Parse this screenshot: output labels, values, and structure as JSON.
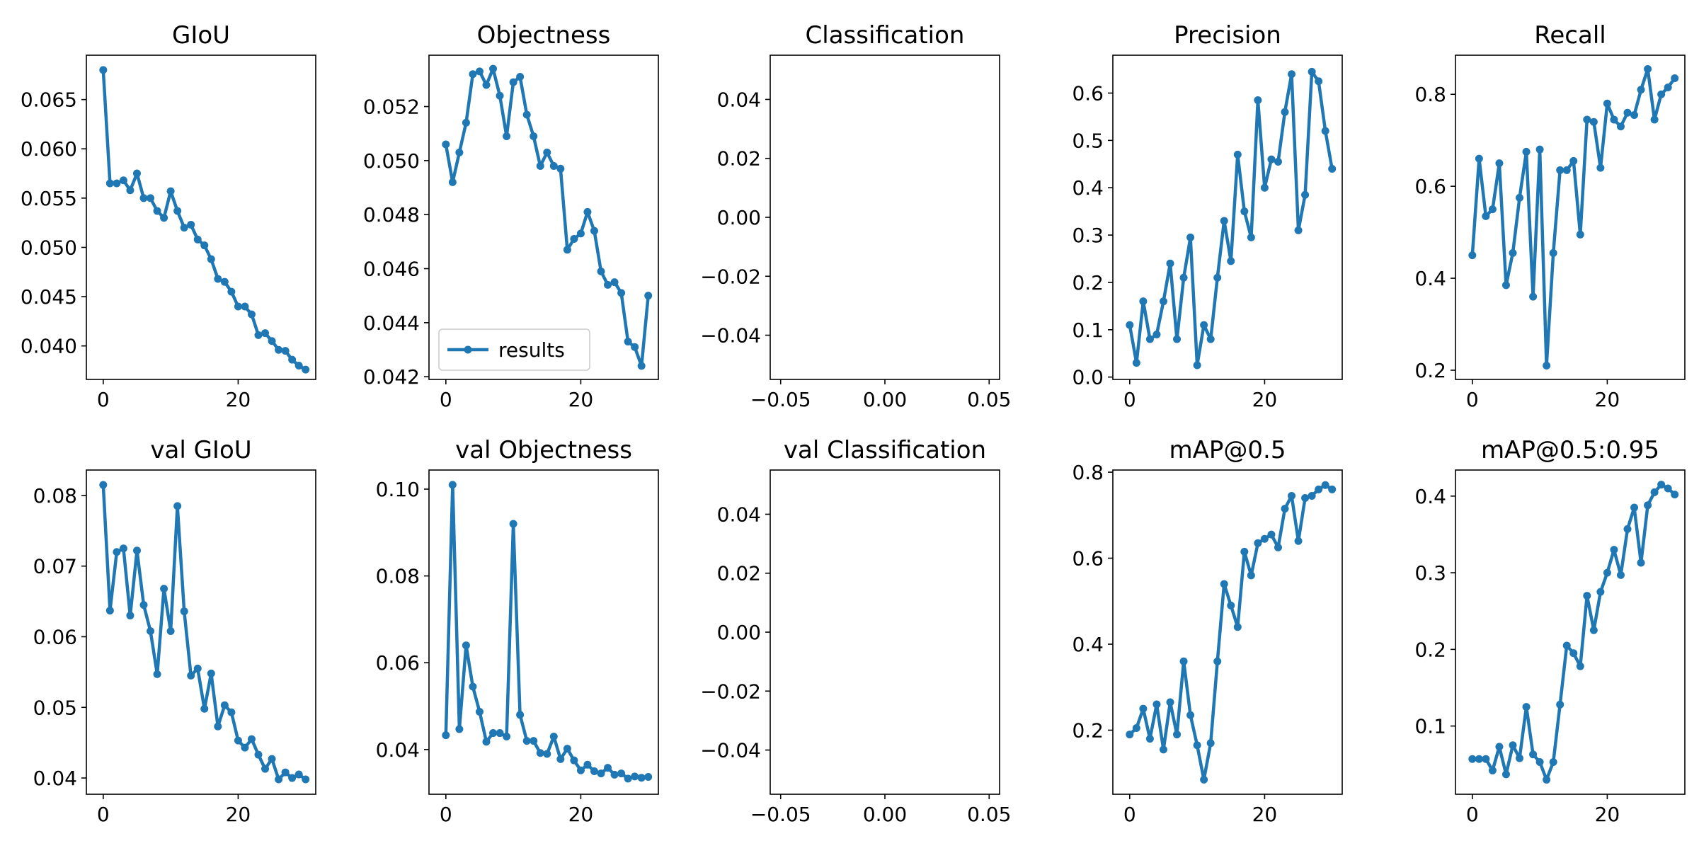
{
  "figure": {
    "line_color": "#1f77b4",
    "legend_label": "results"
  },
  "chart_data": [
    {
      "type": "line",
      "title": "GIoU",
      "x": [
        0,
        1,
        2,
        3,
        4,
        5,
        6,
        7,
        8,
        9,
        10,
        11,
        12,
        13,
        14,
        15,
        16,
        17,
        18,
        19,
        20,
        21,
        22,
        23,
        24,
        25,
        26,
        27,
        28,
        29,
        30
      ],
      "values": [
        0.068,
        0.0565,
        0.0565,
        0.0568,
        0.0558,
        0.0575,
        0.055,
        0.055,
        0.0537,
        0.053,
        0.0557,
        0.0537,
        0.052,
        0.0523,
        0.0508,
        0.0502,
        0.0488,
        0.0468,
        0.0465,
        0.0455,
        0.044,
        0.044,
        0.0432,
        0.0411,
        0.0413,
        0.0405,
        0.0396,
        0.0395,
        0.0386,
        0.038,
        0.0376
      ],
      "xlim": [
        -2.5,
        31.5
      ],
      "ylim": [
        0.0366,
        0.0695
      ],
      "xticks": [
        0,
        20
      ],
      "xtick_labels": [
        "0",
        "20"
      ],
      "yticks": [
        0.04,
        0.045,
        0.05,
        0.055,
        0.06,
        0.065
      ],
      "ytick_labels": [
        "0.040",
        "0.045",
        "0.050",
        "0.055",
        "0.060",
        "0.065"
      ],
      "legend": false
    },
    {
      "type": "line",
      "title": "Objectness",
      "x": [
        0,
        1,
        2,
        3,
        4,
        5,
        6,
        7,
        8,
        9,
        10,
        11,
        12,
        13,
        14,
        15,
        16,
        17,
        18,
        19,
        20,
        21,
        22,
        23,
        24,
        25,
        26,
        27,
        28,
        29,
        30
      ],
      "values": [
        0.0506,
        0.0492,
        0.0503,
        0.0514,
        0.0532,
        0.0533,
        0.0528,
        0.0534,
        0.0524,
        0.0509,
        0.0529,
        0.0531,
        0.0517,
        0.0509,
        0.0498,
        0.0503,
        0.0498,
        0.0497,
        0.0467,
        0.0471,
        0.0473,
        0.0481,
        0.0474,
        0.0459,
        0.0454,
        0.0455,
        0.0451,
        0.0433,
        0.0431,
        0.0424,
        0.045
      ],
      "xlim": [
        -2.5,
        31.5
      ],
      "ylim": [
        0.0419,
        0.0539
      ],
      "xticks": [
        0,
        20
      ],
      "xtick_labels": [
        "0",
        "20"
      ],
      "yticks": [
        0.042,
        0.044,
        0.046,
        0.048,
        0.05,
        0.052
      ],
      "ytick_labels": [
        "0.042",
        "0.044",
        "0.046",
        "0.048",
        "0.050",
        "0.052"
      ],
      "legend": true,
      "legend_loc": "lower-left"
    },
    {
      "type": "line",
      "title": "Classification",
      "x": [],
      "values": [],
      "xlim": [
        -0.055,
        0.055
      ],
      "ylim": [
        -0.055,
        0.055
      ],
      "xticks": [
        -0.05,
        0.0,
        0.05
      ],
      "xtick_labels": [
        "−0.05",
        "0.00",
        "0.05"
      ],
      "yticks": [
        -0.04,
        -0.02,
        0.0,
        0.02,
        0.04
      ],
      "ytick_labels": [
        "−0.04",
        "−0.02",
        "0.00",
        "0.02",
        "0.04"
      ],
      "legend": false
    },
    {
      "type": "line",
      "title": "Precision",
      "x": [
        0,
        1,
        2,
        3,
        4,
        5,
        6,
        7,
        8,
        9,
        10,
        11,
        12,
        13,
        14,
        15,
        16,
        17,
        18,
        19,
        20,
        21,
        22,
        23,
        24,
        25,
        26,
        27,
        28,
        29,
        30
      ],
      "values": [
        0.11,
        0.03,
        0.16,
        0.08,
        0.09,
        0.16,
        0.24,
        0.08,
        0.21,
        0.295,
        0.025,
        0.11,
        0.08,
        0.21,
        0.33,
        0.245,
        0.47,
        0.35,
        0.295,
        0.585,
        0.4,
        0.46,
        0.455,
        0.56,
        0.64,
        0.31,
        0.385,
        0.645,
        0.625,
        0.52,
        0.44
      ],
      "xlim": [
        -2.5,
        31.5
      ],
      "ylim": [
        -0.005,
        0.68
      ],
      "xticks": [
        0,
        20
      ],
      "xtick_labels": [
        "0",
        "20"
      ],
      "yticks": [
        0.0,
        0.1,
        0.2,
        0.3,
        0.4,
        0.5,
        0.6
      ],
      "ytick_labels": [
        "0.0",
        "0.1",
        "0.2",
        "0.3",
        "0.4",
        "0.5",
        "0.6"
      ],
      "legend": false
    },
    {
      "type": "line",
      "title": "Recall",
      "x": [
        0,
        1,
        2,
        3,
        4,
        5,
        6,
        7,
        8,
        9,
        10,
        11,
        12,
        13,
        14,
        15,
        16,
        17,
        18,
        19,
        20,
        21,
        22,
        23,
        24,
        25,
        26,
        27,
        28,
        29,
        30
      ],
      "values": [
        0.45,
        0.66,
        0.535,
        0.55,
        0.65,
        0.385,
        0.455,
        0.575,
        0.675,
        0.36,
        0.68,
        0.21,
        0.455,
        0.635,
        0.635,
        0.655,
        0.495,
        0.745,
        0.74,
        0.64,
        0.78,
        0.745,
        0.73,
        0.76,
        0.755,
        0.81,
        0.855,
        0.745,
        0.8,
        0.815,
        0.835
      ],
      "xlim": [
        -2.5,
        31.5
      ],
      "ylim": [
        0.18,
        0.885
      ],
      "xticks": [
        0,
        20
      ],
      "xtick_labels": [
        "0",
        "20"
      ],
      "yticks": [
        0.2,
        0.4,
        0.6,
        0.8
      ],
      "ytick_labels": [
        "0.2",
        "0.4",
        "0.6",
        "0.8"
      ],
      "legend": false
    },
    {
      "type": "line",
      "title": "val GIoU",
      "x": [
        0,
        1,
        2,
        3,
        4,
        5,
        6,
        7,
        8,
        9,
        10,
        11,
        12,
        13,
        14,
        15,
        16,
        17,
        18,
        19,
        20,
        21,
        22,
        23,
        24,
        25,
        26,
        27,
        28,
        29,
        30
      ],
      "values": [
        0.0815,
        0.0637,
        0.072,
        0.0725,
        0.063,
        0.0722,
        0.0645,
        0.0608,
        0.0547,
        0.0668,
        0.0608,
        0.0785,
        0.0636,
        0.0545,
        0.0555,
        0.0498,
        0.0548,
        0.0473,
        0.0503,
        0.0493,
        0.0453,
        0.0443,
        0.0455,
        0.0433,
        0.0413,
        0.0427,
        0.0398,
        0.0408,
        0.04,
        0.0405,
        0.0398
      ],
      "xlim": [
        -2.5,
        31.5
      ],
      "ylim": [
        0.0377,
        0.0836
      ],
      "xticks": [
        0,
        20
      ],
      "xtick_labels": [
        "0",
        "20"
      ],
      "yticks": [
        0.04,
        0.05,
        0.06,
        0.07,
        0.08
      ],
      "ytick_labels": [
        "0.04",
        "0.05",
        "0.06",
        "0.07",
        "0.08"
      ],
      "legend": false
    },
    {
      "type": "line",
      "title": "val Objectness",
      "x": [
        0,
        1,
        2,
        3,
        4,
        5,
        6,
        7,
        8,
        9,
        10,
        11,
        12,
        13,
        14,
        15,
        16,
        17,
        18,
        19,
        20,
        21,
        22,
        23,
        24,
        25,
        26,
        27,
        28,
        29,
        30
      ],
      "values": [
        0.0433,
        0.101,
        0.0447,
        0.064,
        0.0545,
        0.0487,
        0.0418,
        0.0438,
        0.0438,
        0.043,
        0.092,
        0.048,
        0.042,
        0.042,
        0.0392,
        0.039,
        0.043,
        0.0378,
        0.0402,
        0.0375,
        0.0352,
        0.0365,
        0.035,
        0.0345,
        0.0358,
        0.0342,
        0.0345,
        0.0333,
        0.0338,
        0.0335,
        0.0337
      ],
      "xlim": [
        -2.5,
        31.5
      ],
      "ylim": [
        0.0297,
        0.1044
      ],
      "xticks": [
        0,
        20
      ],
      "xtick_labels": [
        "0",
        "20"
      ],
      "yticks": [
        0.04,
        0.06,
        0.08,
        0.1
      ],
      "ytick_labels": [
        "0.04",
        "0.06",
        "0.08",
        "0.10"
      ],
      "legend": false
    },
    {
      "type": "line",
      "title": "val Classification",
      "x": [],
      "values": [],
      "xlim": [
        -0.055,
        0.055
      ],
      "ylim": [
        -0.055,
        0.055
      ],
      "xticks": [
        -0.05,
        0.0,
        0.05
      ],
      "xtick_labels": [
        "−0.05",
        "0.00",
        "0.05"
      ],
      "yticks": [
        -0.04,
        -0.02,
        0.0,
        0.02,
        0.04
      ],
      "ytick_labels": [
        "−0.04",
        "−0.02",
        "0.00",
        "0.02",
        "0.04"
      ],
      "legend": false
    },
    {
      "type": "line",
      "title": "mAP@0.5",
      "x": [
        0,
        1,
        2,
        3,
        4,
        5,
        6,
        7,
        8,
        9,
        10,
        11,
        12,
        13,
        14,
        15,
        16,
        17,
        18,
        19,
        20,
        21,
        22,
        23,
        24,
        25,
        26,
        27,
        28,
        29,
        30
      ],
      "values": [
        0.19,
        0.205,
        0.25,
        0.18,
        0.26,
        0.155,
        0.265,
        0.19,
        0.36,
        0.235,
        0.165,
        0.085,
        0.17,
        0.36,
        0.54,
        0.49,
        0.44,
        0.615,
        0.56,
        0.635,
        0.645,
        0.655,
        0.625,
        0.715,
        0.745,
        0.64,
        0.74,
        0.745,
        0.76,
        0.77,
        0.76
      ],
      "xlim": [
        -2.5,
        31.5
      ],
      "ylim": [
        0.051,
        0.805
      ],
      "xticks": [
        0,
        20
      ],
      "xtick_labels": [
        "0",
        "20"
      ],
      "yticks": [
        0.2,
        0.4,
        0.6,
        0.8
      ],
      "ytick_labels": [
        "0.2",
        "0.4",
        "0.6",
        "0.8"
      ],
      "legend": false
    },
    {
      "type": "line",
      "title": "mAP@0.5:0.95",
      "x": [
        0,
        1,
        2,
        3,
        4,
        5,
        6,
        7,
        8,
        9,
        10,
        11,
        12,
        13,
        14,
        15,
        16,
        17,
        18,
        19,
        20,
        21,
        22,
        23,
        24,
        25,
        26,
        27,
        28,
        29,
        30
      ],
      "values": [
        0.057,
        0.057,
        0.057,
        0.042,
        0.073,
        0.037,
        0.075,
        0.058,
        0.125,
        0.063,
        0.053,
        0.03,
        0.053,
        0.128,
        0.205,
        0.195,
        0.178,
        0.27,
        0.225,
        0.275,
        0.3,
        0.33,
        0.297,
        0.357,
        0.385,
        0.313,
        0.388,
        0.405,
        0.415,
        0.41,
        0.402
      ],
      "xlim": [
        -2.5,
        31.5
      ],
      "ylim": [
        0.011,
        0.434
      ],
      "xticks": [
        0,
        20
      ],
      "xtick_labels": [
        "0",
        "20"
      ],
      "yticks": [
        0.1,
        0.2,
        0.3,
        0.4
      ],
      "ytick_labels": [
        "0.1",
        "0.2",
        "0.3",
        "0.4"
      ],
      "legend": false
    }
  ]
}
